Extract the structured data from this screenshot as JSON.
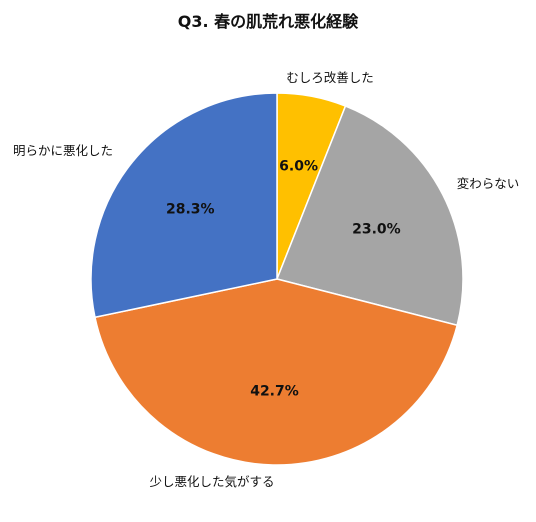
{
  "chart_data": {
    "type": "pie",
    "title": "Q3. 春の肌荒れ悪化経験",
    "start_angle_deg": 0,
    "direction": "clockwise",
    "slices": [
      {
        "label": "むしろ改善した",
        "value": 6.0,
        "display": "6.0%",
        "color": "#FFC000"
      },
      {
        "label": "変わらない",
        "value": 23.0,
        "display": "23.0%",
        "color": "#A5A5A5"
      },
      {
        "label": "少し悪化した気がする",
        "value": 42.7,
        "display": "42.7%",
        "color": "#ED7D31"
      },
      {
        "label": "明らかに悪化した",
        "value": 28.3,
        "display": "28.3%",
        "color": "#4472C4"
      }
    ]
  }
}
